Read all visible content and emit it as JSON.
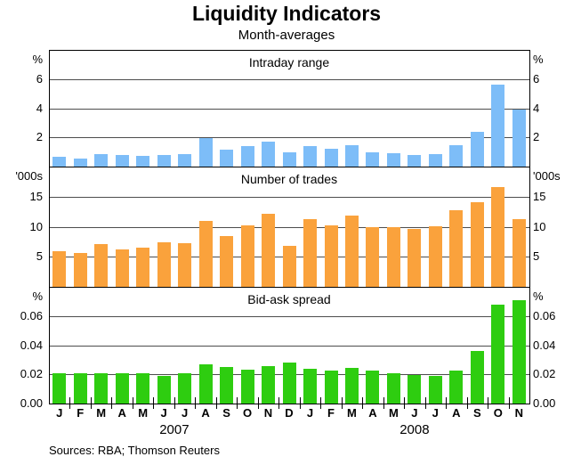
{
  "title": "Liquidity Indicators",
  "subtitle": "Month-averages",
  "footer": "Sources: RBA; Thomson Reuters",
  "colors": {
    "intraday_bar": "#7dbdf8",
    "trades_bar": "#faa23c",
    "spread_bar": "#2ecd10",
    "gridline": "#4d4d4d",
    "frame": "#000000"
  },
  "chart_data": {
    "type": "bar",
    "title": "Liquidity Indicators",
    "subtitle": "Month-averages",
    "categories": [
      "J",
      "F",
      "M",
      "A",
      "M",
      "J",
      "J",
      "A",
      "S",
      "O",
      "N",
      "D",
      "J",
      "F",
      "M",
      "A",
      "M",
      "J",
      "J",
      "A",
      "S",
      "O",
      "N"
    ],
    "year_labels": [
      {
        "label": "2007",
        "span": [
          0,
          11
        ]
      },
      {
        "label": "2008",
        "span": [
          12,
          22
        ]
      }
    ],
    "legend": "none",
    "grid": "horizontal",
    "panels": [
      {
        "id": "intraday-range",
        "title": "Intraday range",
        "unit": "%",
        "ylim": [
          0,
          8
        ],
        "ticks": [
          {
            "v": 6,
            "label": "6"
          },
          {
            "v": 4,
            "label": "4"
          },
          {
            "v": 2,
            "label": "2"
          }
        ],
        "color": "#7dbdf8",
        "values": [
          0.65,
          0.55,
          0.85,
          0.8,
          0.75,
          0.8,
          0.85,
          1.95,
          1.15,
          1.4,
          1.7,
          1.0,
          1.4,
          1.2,
          1.45,
          1.0,
          0.9,
          0.8,
          0.85,
          1.45,
          2.4,
          5.65,
          3.9
        ]
      },
      {
        "id": "number-of-trades",
        "title": "Number of trades",
        "unit": "'000s",
        "ylim": [
          0,
          20
        ],
        "ticks": [
          {
            "v": 15,
            "label": "15"
          },
          {
            "v": 10,
            "label": "10"
          },
          {
            "v": 5,
            "label": "5"
          }
        ],
        "color": "#faa23c",
        "values": [
          6.0,
          5.6,
          7.1,
          6.2,
          6.5,
          7.4,
          7.2,
          11.0,
          8.4,
          10.3,
          12.2,
          6.8,
          11.2,
          10.3,
          11.9,
          9.9,
          9.9,
          9.7,
          10.1,
          12.8,
          14.1,
          16.6,
          11.2
        ]
      },
      {
        "id": "bid-ask-spread",
        "title": "Bid-ask spread",
        "unit": "%",
        "ylim": [
          0,
          0.08
        ],
        "ticks": [
          {
            "v": 0.06,
            "label": "0.06"
          },
          {
            "v": 0.04,
            "label": "0.04"
          },
          {
            "v": 0.02,
            "label": "0.02"
          },
          {
            "v": 0,
            "label": "0.00"
          }
        ],
        "color": "#2ecd10",
        "values": [
          0.021,
          0.021,
          0.021,
          0.021,
          0.0205,
          0.019,
          0.0205,
          0.027,
          0.025,
          0.023,
          0.0255,
          0.028,
          0.024,
          0.0225,
          0.0245,
          0.0225,
          0.021,
          0.0195,
          0.019,
          0.0225,
          0.036,
          0.068,
          0.071
        ]
      }
    ]
  }
}
